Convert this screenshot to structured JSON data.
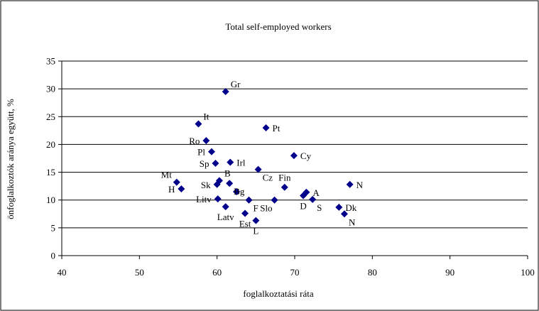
{
  "chart_data": {
    "type": "scatter",
    "title": "Total self-employed workers",
    "xlabel": "foglalkoztatási ráta",
    "ylabel": "önfoglalkoztók aránya együtt, %",
    "xlim": [
      40,
      100
    ],
    "ylim": [
      0,
      35
    ],
    "xticks": [
      "40",
      "50",
      "60",
      "70",
      "80",
      "90",
      "100"
    ],
    "yticks": [
      "0",
      "5",
      "10",
      "15",
      "20",
      "25",
      "30",
      "35"
    ],
    "grid": "horizontal",
    "legend": "none",
    "marker_color": "#00008b",
    "points": [
      {
        "label": "Gr",
        "x": 61.1,
        "y": 29.5,
        "pos": "tr"
      },
      {
        "label": "It",
        "x": 57.6,
        "y": 23.7,
        "pos": "tr"
      },
      {
        "label": "Pt",
        "x": 66.3,
        "y": 23.0,
        "pos": "r"
      },
      {
        "label": "Ro",
        "x": 58.6,
        "y": 20.7,
        "pos": "l"
      },
      {
        "label": "Pl",
        "x": 59.3,
        "y": 18.7,
        "pos": "l"
      },
      {
        "label": "Cy",
        "x": 69.9,
        "y": 18.0,
        "pos": "r"
      },
      {
        "label": "Irl",
        "x": 61.7,
        "y": 16.8,
        "pos": "r"
      },
      {
        "label": "Sp",
        "x": 59.8,
        "y": 16.6,
        "pos": "l"
      },
      {
        "label": "Cz",
        "x": 65.3,
        "y": 15.5,
        "pos": "br"
      },
      {
        "label": "Mt",
        "x": 54.8,
        "y": 13.2,
        "pos": "tl"
      },
      {
        "label": "B",
        "x": 60.3,
        "y": 13.5,
        "pos": "tr"
      },
      {
        "label": "Sk",
        "x": 60.0,
        "y": 12.8,
        "pos": "l"
      },
      {
        "label": "Bg",
        "x": 61.6,
        "y": 13.0,
        "pos": "br"
      },
      {
        "label": "Fin",
        "x": 68.7,
        "y": 12.3,
        "pos": "t"
      },
      {
        "label": "H",
        "x": 55.4,
        "y": 12.0,
        "pos": "l"
      },
      {
        "label": "N",
        "x": 77.1,
        "y": 12.8,
        "pos": "r"
      },
      {
        "label": "A",
        "x": 71.5,
        "y": 11.4,
        "pos": "r"
      },
      {
        "label": "D",
        "x": 71.1,
        "y": 10.8,
        "pos": "b"
      },
      {
        "label": "",
        "x": 62.5,
        "y": 11.5,
        "pos": "none"
      },
      {
        "label": "Litv",
        "x": 60.1,
        "y": 10.2,
        "pos": "l"
      },
      {
        "label": "F",
        "x": 64.1,
        "y": 10.0,
        "pos": "br"
      },
      {
        "label": "Slo",
        "x": 67.4,
        "y": 10.0,
        "pos": "bl"
      },
      {
        "label": "S",
        "x": 72.3,
        "y": 10.1,
        "pos": "br"
      },
      {
        "label": "Dk",
        "x": 75.7,
        "y": 8.7,
        "pos": "r"
      },
      {
        "label": "Latv",
        "x": 61.1,
        "y": 8.8,
        "pos": "b"
      },
      {
        "label": "Est",
        "x": 63.6,
        "y": 7.6,
        "pos": "b"
      },
      {
        "label": "N",
        "x": 76.4,
        "y": 7.5,
        "pos": "br"
      },
      {
        "label": "L",
        "x": 65.0,
        "y": 6.3,
        "pos": "b"
      }
    ]
  }
}
